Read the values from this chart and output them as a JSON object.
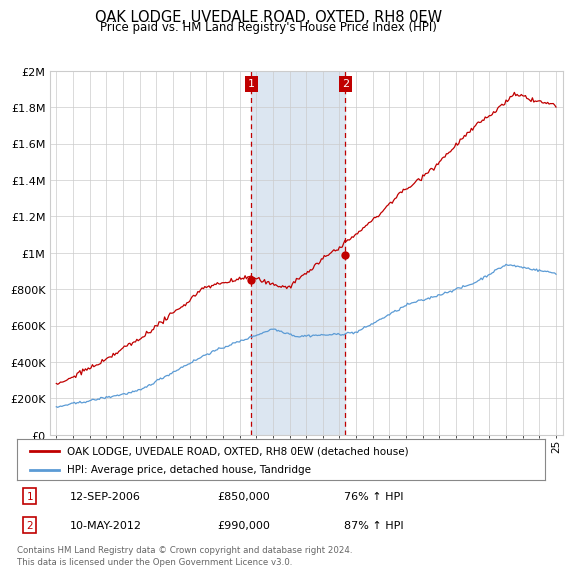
{
  "title": "OAK LODGE, UVEDALE ROAD, OXTED, RH8 0EW",
  "subtitle": "Price paid vs. HM Land Registry's House Price Index (HPI)",
  "legend_line1": "OAK LODGE, UVEDALE ROAD, OXTED, RH8 0EW (detached house)",
  "legend_line2": "HPI: Average price, detached house, Tandridge",
  "annotation1_label": "1",
  "annotation1_date": "12-SEP-2006",
  "annotation1_price": "£850,000",
  "annotation1_hpi": "76% ↑ HPI",
  "annotation2_label": "2",
  "annotation2_date": "10-MAY-2012",
  "annotation2_price": "£990,000",
  "annotation2_hpi": "87% ↑ HPI",
  "footer": "Contains HM Land Registry data © Crown copyright and database right 2024.\nThis data is licensed under the Open Government Licence v3.0.",
  "hpi_color": "#5b9bd5",
  "sale_color": "#c00000",
  "annotation_box_color": "#c00000",
  "background_color": "#ffffff",
  "plot_bg_color": "#ffffff",
  "shaded_region_color": "#dce6f1",
  "grid_color": "#cccccc",
  "ylim": [
    0,
    2000000
  ],
  "yticks": [
    0,
    200000,
    400000,
    600000,
    800000,
    1000000,
    1200000,
    1400000,
    1600000,
    1800000,
    2000000
  ],
  "year_start": 1995,
  "year_end": 2025,
  "sale1_year": 2006.71,
  "sale1_value": 850000,
  "sale2_year": 2012.36,
  "sale2_value": 990000
}
